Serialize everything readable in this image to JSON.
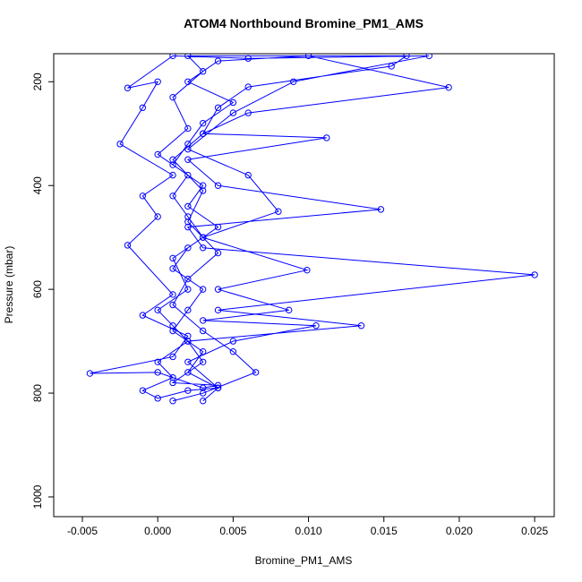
{
  "chart_data": {
    "type": "line",
    "title": "ATOM4 Northbound Bromine_PM1_AMS",
    "x_label": "Bromine_PM1_AMS",
    "y_label": "Pressure (mbar)",
    "color": "#0000ff",
    "xlim": [
      -0.0069,
      0.0263
    ],
    "ylim": [
      1038,
      146
    ],
    "xticks": [
      -0.005,
      {
        "value": 0,
        "label": "0.000"
      },
      0.005,
      {
        "value": 0.01,
        "label": "0.010"
      },
      0.015,
      {
        "value": 0.02,
        "label": "0.020"
      },
      0.025
    ],
    "yticks": [
      200,
      400,
      600,
      800,
      1000
    ],
    "x": [
      0.003,
      0.004,
      0.002,
      0.003,
      0.001,
      0.002,
      0.003,
      0.001,
      0.002,
      0.004,
      0.002,
      0.003,
      0.001,
      0.002,
      0.003,
      0.005,
      0.002,
      0.004,
      0.01,
      0.0193,
      0.006,
      0.003,
      0.0112,
      0.002,
      0.004,
      0.0148,
      0.002,
      0.003,
      0.025,
      0.004,
      0.0135,
      0.002,
      0.003,
      0.001,
      0.004,
      0.003,
      0.0,
      -0.0045,
      0.001,
      0.002,
      -0.001,
      0.001,
      -0.002,
      0.0,
      -0.001,
      0.001,
      -0.0025,
      -0.001,
      0.0,
      -0.002,
      0.001,
      0.006,
      0.018,
      0.009,
      0.005,
      0.002,
      0.006,
      0.008,
      0.003,
      0.0099,
      0.004,
      0.0087,
      0.003,
      0.0105,
      0.005,
      0.002,
      0.004,
      0.002,
      0.0,
      -0.001,
      0.001,
      0.0,
      0.002,
      0.001,
      0.0,
      0.002,
      0.001,
      0.003,
      0.002,
      0.001,
      0.002,
      0.0,
      0.002,
      0.001,
      0.003,
      0.002,
      0.0165,
      0.0155,
      0.006,
      0.004,
      0.003,
      0.001,
      0.003,
      0.002,
      0.004,
      0.002,
      0.001,
      0.003,
      0.005,
      0.0065,
      0.003,
      0.001
    ],
    "values": [
      815,
      790,
      760,
      720,
      680,
      640,
      600,
      560,
      520,
      480,
      440,
      400,
      360,
      320,
      280,
      240,
      200,
      160,
      150,
      211,
      260,
      300,
      308,
      350,
      400,
      446,
      480,
      520,
      572,
      640,
      670,
      700,
      740,
      780,
      785,
      790,
      760,
      762,
      730,
      690,
      650,
      610,
      515,
      460,
      420,
      380,
      320,
      250,
      200,
      212,
      150,
      155,
      150,
      200,
      260,
      330,
      380,
      450,
      500,
      563,
      600,
      640,
      660,
      670,
      700,
      740,
      790,
      795,
      810,
      795,
      770,
      740,
      700,
      670,
      640,
      600,
      540,
      500,
      460,
      420,
      380,
      340,
      290,
      230,
      180,
      150,
      150,
      170,
      210,
      250,
      300,
      350,
      410,
      470,
      530,
      580,
      630,
      680,
      720,
      760,
      800,
      815
    ]
  }
}
